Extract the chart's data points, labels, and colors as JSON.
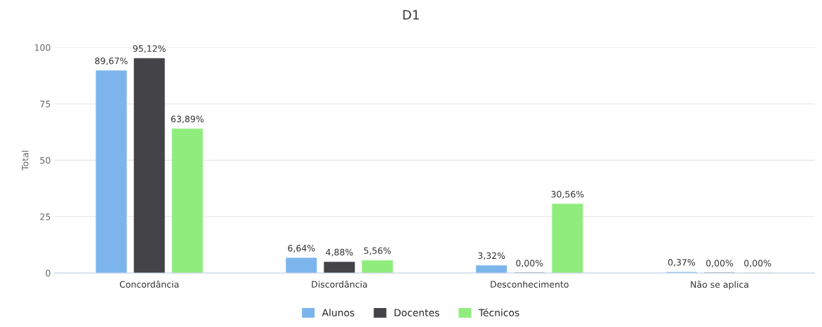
{
  "chart_data": {
    "type": "bar",
    "title": "D1",
    "ylabel": "Total",
    "categories": [
      "Concordância",
      "Discordância",
      "Desconhecimento",
      "Não se aplica"
    ],
    "series": [
      {
        "name": "Alunos",
        "color": "#7cb5ec",
        "values": [
          89.67,
          6.64,
          3.32,
          0.37
        ],
        "value_labels": [
          "89,67%",
          "6,64%",
          "3,32%",
          "0,37%"
        ]
      },
      {
        "name": "Docentes",
        "color": "#434348",
        "values": [
          95.12,
          4.88,
          0,
          0
        ],
        "value_labels": [
          "95,12%",
          "4,88%",
          "0,00%",
          "0,00%"
        ]
      },
      {
        "name": "Técnicos",
        "color": "#90ed7d",
        "values": [
          63.89,
          5.56,
          30.56,
          0
        ],
        "value_labels": [
          "63,89%",
          "5,56%",
          "30,56%",
          "0,00%"
        ]
      }
    ],
    "ylim": [
      0,
      100
    ],
    "yticks": [
      0,
      25,
      50,
      75,
      100
    ],
    "grid": "y",
    "legend": "bottom"
  }
}
